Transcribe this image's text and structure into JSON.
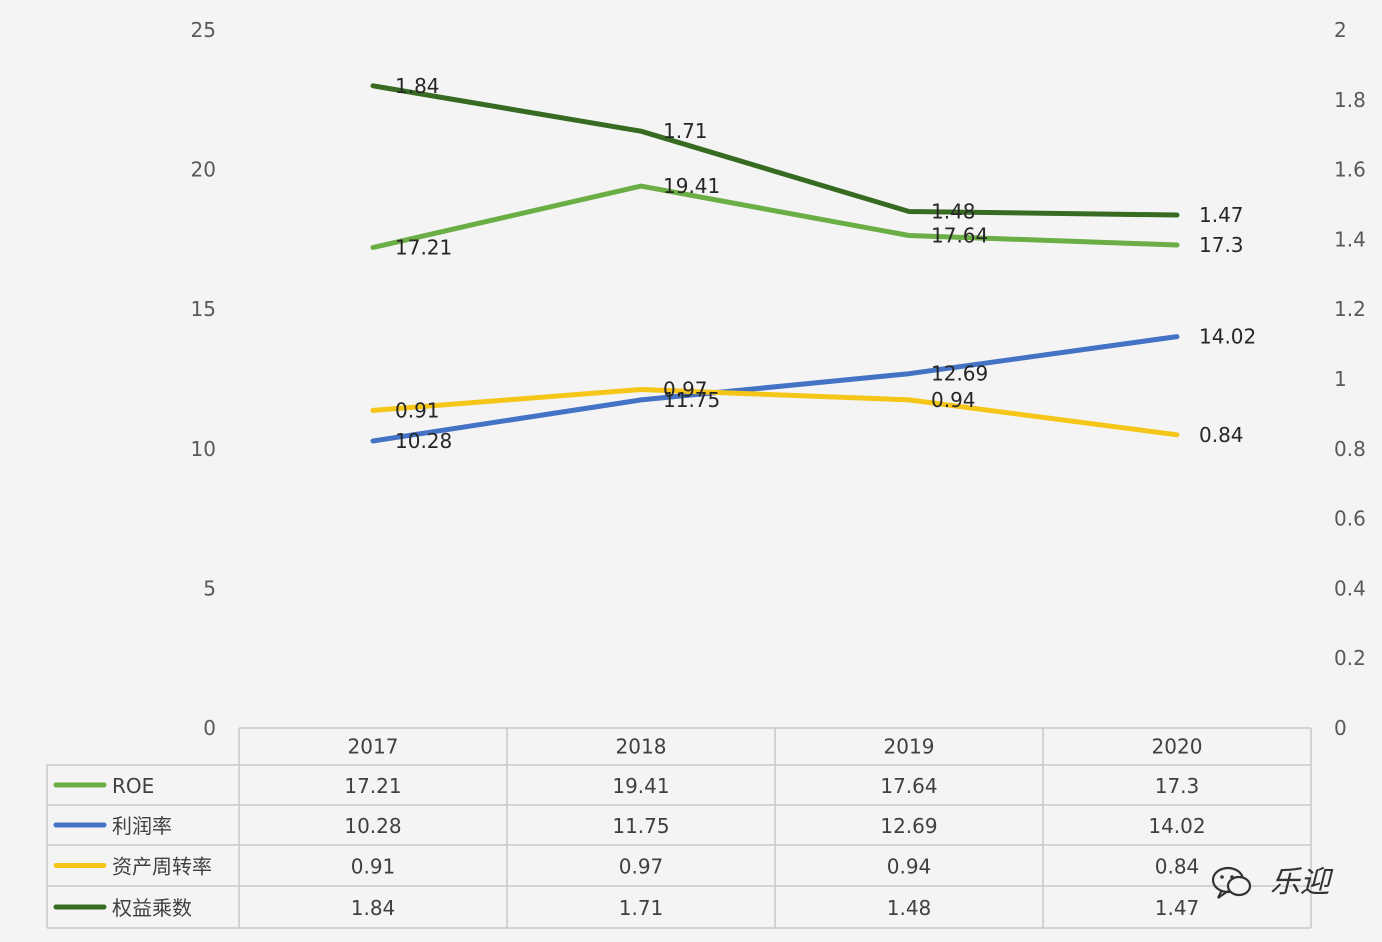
{
  "chart_data": {
    "type": "line",
    "categories": [
      "2017",
      "2018",
      "2019",
      "2020"
    ],
    "y_left": {
      "ticks": [
        "0",
        "5",
        "10",
        "15",
        "20",
        "25"
      ],
      "ylim": [
        0,
        25
      ]
    },
    "y_right": {
      "ticks": [
        "0",
        "0.2",
        "0.4",
        "0.6",
        "0.8",
        "1",
        "1.2",
        "1.4",
        "1.6",
        "1.8",
        "2"
      ],
      "ylim": [
        0,
        2
      ]
    },
    "grid": false,
    "data_table": true,
    "series": [
      {
        "name": "ROE",
        "axis": "left",
        "color": "#6aae45",
        "values": [
          17.21,
          19.41,
          17.64,
          17.3
        ],
        "labels": [
          "17.21",
          "19.41",
          "17.64",
          "17.3"
        ]
      },
      {
        "name": "利润率",
        "axis": "left",
        "color": "#4472c4",
        "values": [
          10.28,
          11.75,
          12.69,
          14.02
        ],
        "labels": [
          "10.28",
          "11.75",
          "12.69",
          "14.02"
        ]
      },
      {
        "name": "资产周转率",
        "axis": "right",
        "color": "#f5c518",
        "values": [
          0.91,
          0.97,
          0.94,
          0.84
        ],
        "labels": [
          "0.91",
          "0.97",
          "0.94",
          "0.84"
        ]
      },
      {
        "name": "权益乘数",
        "axis": "right",
        "color": "#386b22",
        "values": [
          1.84,
          1.71,
          1.48,
          1.47
        ],
        "labels": [
          "1.84",
          "1.71",
          "1.48",
          "1.47"
        ]
      }
    ]
  },
  "watermark": {
    "text": "乐迎",
    "icon": "wechat-icon"
  }
}
